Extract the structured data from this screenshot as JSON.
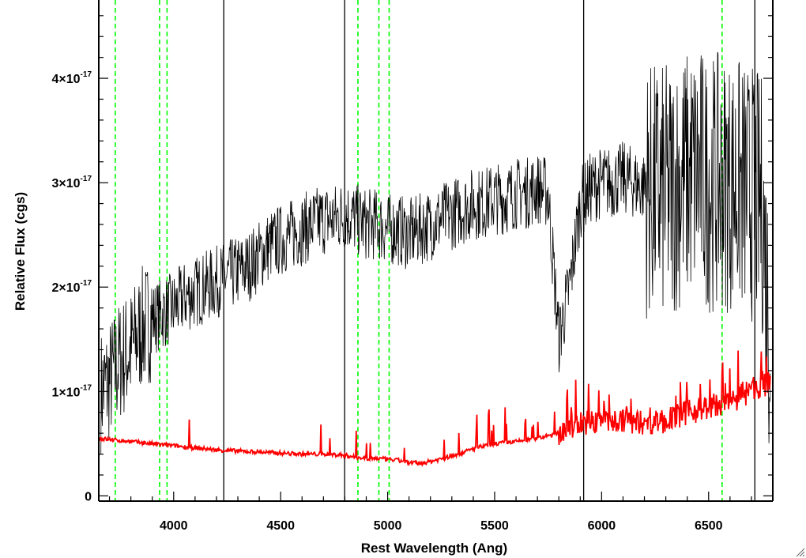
{
  "chart_data": {
    "type": "line",
    "xlabel": "Rest Wavelength (Ang)",
    "ylabel": "Relative Flux (cgs)",
    "xlim": [
      3650,
      6800
    ],
    "ylim": [
      -0.05,
      4.75
    ],
    "y_multiplier_exponent": -17,
    "x_ticks": [
      4000,
      4500,
      5000,
      5500,
      6000,
      6500
    ],
    "x_tick_labels": [
      "4000",
      "4500",
      "5000",
      "5500",
      "6000",
      "6500"
    ],
    "y_ticks": [
      0,
      1,
      2,
      3,
      4
    ],
    "y_tick_labels": [
      {
        "mantissa": "0",
        "exponent": ""
      },
      {
        "mantissa": "1×10",
        "exponent": "-17"
      },
      {
        "mantissa": "2×10",
        "exponent": "-17"
      },
      {
        "mantissa": "3×10",
        "exponent": "-17"
      },
      {
        "mantissa": "4×10",
        "exponent": "-17"
      }
    ],
    "grid": false,
    "series": [
      {
        "color": "#000000",
        "style": "solid",
        "x": [
          3660,
          3700,
          3750,
          3800,
          3850,
          3900,
          3950,
          4000,
          4050,
          4100,
          4150,
          4200,
          4250,
          4300,
          4350,
          4400,
          4450,
          4500,
          4550,
          4600,
          4650,
          4700,
          4750,
          4800,
          4850,
          4900,
          4950,
          5000,
          5050,
          5100,
          5150,
          5200,
          5250,
          5300,
          5350,
          5400,
          5450,
          5500,
          5550,
          5600,
          5650,
          5700,
          5750,
          5800,
          5850,
          5900,
          5950,
          6000,
          6050,
          6100,
          6150,
          6200,
          6250,
          6300,
          6350,
          6400,
          6450,
          6500,
          6550,
          6600,
          6650,
          6700,
          6750,
          6790
        ],
        "y": [
          1.0,
          1.1,
          1.3,
          1.4,
          1.6,
          1.7,
          1.75,
          1.8,
          1.9,
          1.95,
          2.0,
          2.05,
          2.1,
          2.15,
          2.2,
          2.3,
          2.4,
          2.45,
          2.5,
          2.55,
          2.6,
          2.65,
          2.65,
          2.7,
          2.65,
          2.6,
          2.6,
          2.55,
          2.55,
          2.5,
          2.55,
          2.6,
          2.65,
          2.7,
          2.75,
          2.8,
          2.8,
          2.85,
          2.85,
          2.9,
          2.9,
          2.95,
          2.9,
          1.5,
          2.0,
          2.8,
          2.95,
          3.0,
          3.0,
          3.05,
          3.0,
          2.95,
          2.9,
          2.9,
          3.0,
          3.05,
          3.1,
          3.0,
          3.0,
          3.0,
          2.95,
          2.9,
          2.8,
          1.4
        ]
      },
      {
        "color": "#ff0000",
        "style": "solid",
        "x": [
          3650,
          3700,
          3800,
          3900,
          4000,
          4100,
          4200,
          4300,
          4400,
          4500,
          4600,
          4700,
          4800,
          4850,
          4900,
          4950,
          5000,
          5050,
          5100,
          5150,
          5200,
          5300,
          5400,
          5500,
          5600,
          5700,
          5800,
          5850,
          5900,
          6000,
          6100,
          6200,
          6300,
          6400,
          6500,
          6550,
          6600,
          6650,
          6700,
          6750,
          6790
        ],
        "y": [
          0.55,
          0.54,
          0.52,
          0.5,
          0.48,
          0.46,
          0.44,
          0.43,
          0.42,
          0.41,
          0.4,
          0.4,
          0.39,
          0.37,
          0.36,
          0.36,
          0.35,
          0.34,
          0.32,
          0.31,
          0.33,
          0.38,
          0.45,
          0.5,
          0.52,
          0.55,
          0.6,
          0.66,
          0.7,
          0.72,
          0.72,
          0.7,
          0.72,
          0.8,
          0.85,
          0.88,
          0.9,
          0.95,
          1.0,
          1.05,
          1.1
        ]
      }
    ],
    "reference_lines": [
      {
        "color": "#00ff00",
        "style": "dashed",
        "x": [
          3727,
          3934,
          3969,
          4861,
          4959,
          5007,
          6563
        ]
      },
      {
        "color": "#000000",
        "style": "solid",
        "x": [
          4234,
          4799,
          5916,
          6716
        ]
      }
    ]
  }
}
